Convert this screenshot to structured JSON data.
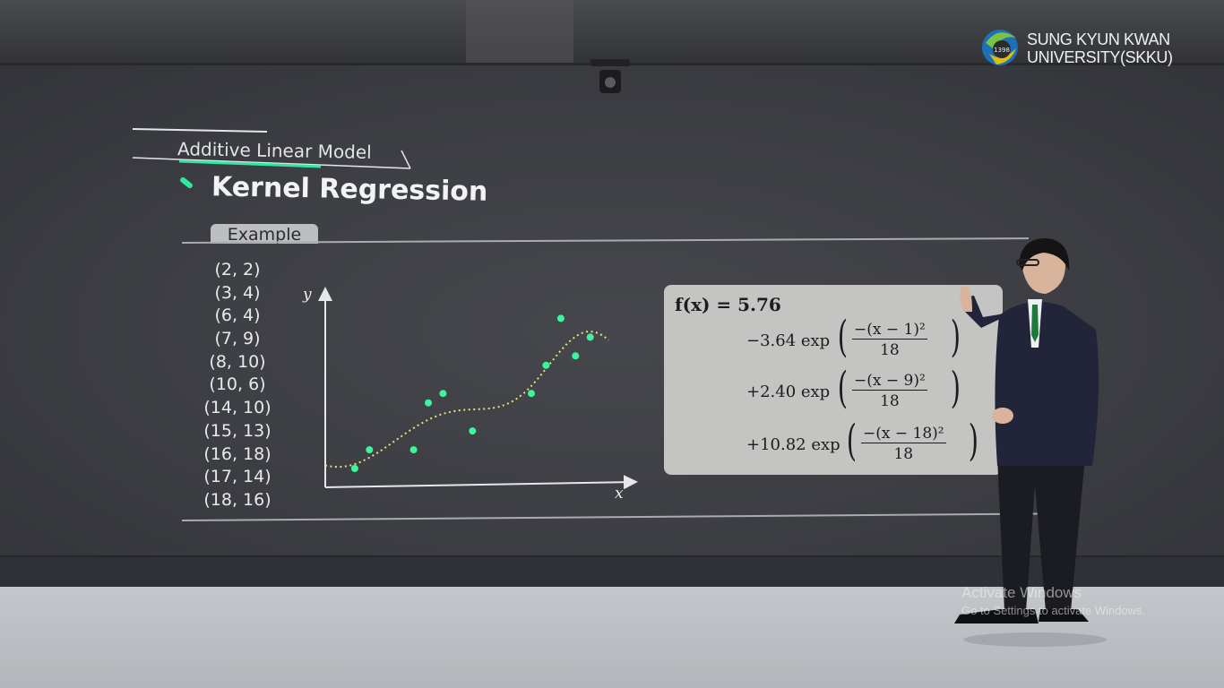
{
  "logo": {
    "line1": "SUNG KYUN KWAN",
    "line2": "UNIVERSITY(SKKU)",
    "seal_text": "1398",
    "colors": {
      "green": "#7cc242",
      "blue": "#1d6fb8",
      "yellow": "#f2c500"
    }
  },
  "slide": {
    "section": "Additive Linear Model",
    "title": "Kernel Regression",
    "tab": "Example",
    "accent_color": "#2fe7a0"
  },
  "points": [
    "(2, 2)",
    "(3, 4)",
    "(6, 4)",
    "(7, 9)",
    "(8, 10)",
    "(10, 6)",
    "(14, 10)",
    "(15, 13)",
    "(16, 18)",
    "(17, 14)",
    "(18, 16)"
  ],
  "chart_data": {
    "type": "scatter",
    "x": [
      2,
      3,
      6,
      7,
      8,
      10,
      14,
      15,
      16,
      17,
      18
    ],
    "y": [
      2,
      4,
      4,
      9,
      10,
      6,
      10,
      13,
      18,
      14,
      16
    ],
    "xlabel": "x",
    "ylabel": "y",
    "xlim": [
      0,
      21
    ],
    "ylim": [
      0,
      21
    ],
    "point_color": "#3df59d",
    "fit_color": "#e6e07a",
    "fit": {
      "intercept": 5.76,
      "weights": [
        -3.64,
        2.4,
        10.82
      ],
      "centers": [
        1,
        9,
        18
      ],
      "width": 18
    },
    "grid": false
  },
  "formula": {
    "head": "f(x) = 5.76",
    "terms": [
      {
        "coef": "−3.64 exp",
        "numerator": "−(x − 1)²",
        "denominator": "18"
      },
      {
        "coef": "+2.40 exp",
        "numerator": "−(x − 9)²",
        "denominator": "18"
      },
      {
        "coef": "+10.82 exp",
        "numerator": "−(x − 18)²",
        "denominator": "18"
      }
    ]
  },
  "watermark": {
    "line1": "Activate Windows",
    "line2": "Go to Settings to activate Windows."
  }
}
